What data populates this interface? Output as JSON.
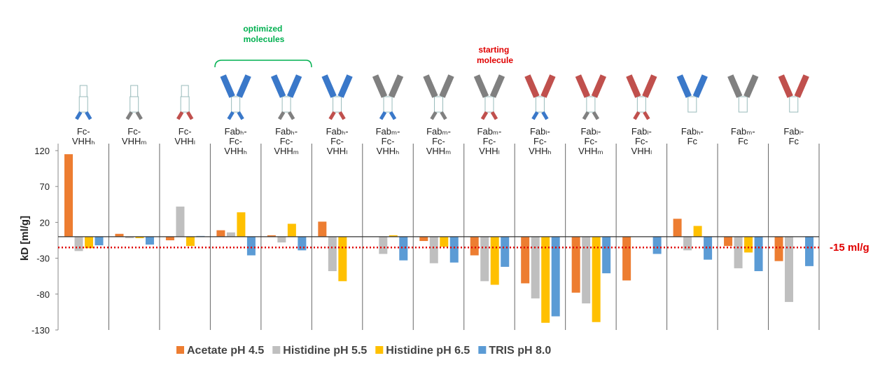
{
  "chart_data": {
    "type": "bar",
    "y_axis_label": "kD [ml/g]",
    "categories": [
      "Fc-VHHₕ",
      "Fc-VHHₘ",
      "Fc-VHHₗ",
      "Fabₕ-Fc-VHHₕ",
      "Fabₕ-Fc-VHHₘ",
      "Fabₕ-Fc-VHHₗ",
      "Fabₘ-Fc-VHHₕ",
      "Fabₘ-Fc-VHHₘ",
      "Fabₘ-Fc-VHHₗ",
      "Fabₗ-Fc-VHHₕ",
      "Fabₗ-Fc-VHHₘ",
      "Fabₗ-Fc-VHHₗ",
      "Fabₕ-Fc",
      "Fabₘ-Fc",
      "Fabₗ-Fc"
    ],
    "series": [
      {
        "name": "Acetate pH 4.5",
        "color": "#ed7d31",
        "values": [
          115,
          4,
          -5,
          9,
          2,
          21,
          0,
          -6,
          -26,
          -65,
          -78,
          -61,
          25,
          -13,
          -34
        ]
      },
      {
        "name": "Histidine pH 5.5",
        "color": "#bfbfbf",
        "values": [
          -20,
          -2,
          42,
          6,
          -8,
          -48,
          -24,
          -37,
          -62,
          -86,
          -93,
          0,
          -19,
          -44,
          -91
        ]
      },
      {
        "name": "Histidine pH 6.5",
        "color": "#ffc000",
        "values": [
          -16,
          -2,
          -13,
          34,
          18,
          -62,
          2,
          -14,
          -67,
          -120,
          -119,
          0,
          15,
          -22,
          0
        ]
      },
      {
        "name": "TRIS pH 8.0",
        "color": "#5b9bd5",
        "values": [
          -12,
          -11,
          1,
          -26,
          -19,
          0,
          -33,
          -36,
          -42,
          -111,
          -51,
          -24,
          -32,
          -48,
          -41
        ]
      }
    ],
    "ylim": [
      -130,
      120
    ],
    "yticks": [
      -130,
      -80,
      -30,
      20,
      70,
      120
    ],
    "reference_line": {
      "value": -15,
      "label": "-15 ml/g",
      "color": "#e00000"
    },
    "annotations": [
      {
        "text": "optimized molecules",
        "color": "#00b050"
      },
      {
        "text": "starting molecule",
        "color": "#e00000"
      }
    ]
  }
}
